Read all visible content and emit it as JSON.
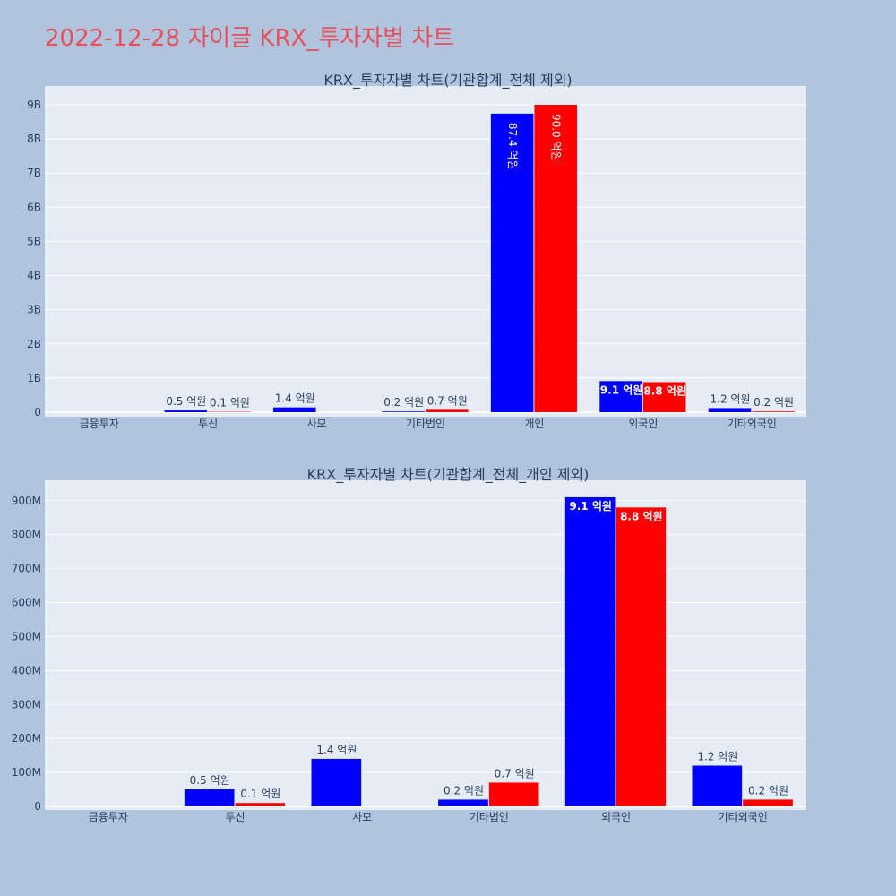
{
  "page_title": "2022-12-28 자이글 KRX_투자자별 차트",
  "colors": {
    "series_a": "#0000ff",
    "series_b": "#ff0000",
    "plot_bg": "#e5ecf6",
    "page_bg": "#b0c4de",
    "title": "#e8505b"
  },
  "chart_data": [
    {
      "type": "bar",
      "title": "KRX_투자자별 차트(기관합계_전체 제외)",
      "categories": [
        "금융투자",
        "투신",
        "사모",
        "기타법인",
        "개인",
        "외국인",
        "기타외국인"
      ],
      "series": [
        {
          "values": [
            0,
            50000000,
            140000000,
            20000000,
            8740000000,
            910000000,
            120000000
          ],
          "labels": [
            "",
            "0.5 억원",
            "1.4 억원",
            "0.2 억원",
            "87.4 억원",
            "9.1 억원",
            "1.2 억원"
          ]
        },
        {
          "values": [
            0,
            10000000,
            0,
            70000000,
            9000000000,
            880000000,
            20000000
          ],
          "labels": [
            "",
            "0.1 억원",
            "",
            "0.7 억원",
            "90.0 억원",
            "8.8 억원",
            "0.2 억원"
          ]
        }
      ],
      "yticks": [
        "0",
        "1B",
        "2B",
        "3B",
        "4B",
        "5B",
        "6B",
        "7B",
        "8B",
        "9B"
      ],
      "ylim": [
        0,
        9550000000
      ],
      "grid": true,
      "legend": "none"
    },
    {
      "type": "bar",
      "title": "KRX_투자자별 차트(기관합계_전체_개인 제외)",
      "categories": [
        "금융투자",
        "투신",
        "사모",
        "기타법인",
        "외국인",
        "기타외국인"
      ],
      "series": [
        {
          "values": [
            0,
            50000000,
            140000000,
            20000000,
            910000000,
            120000000
          ],
          "labels": [
            "",
            "0.5 억원",
            "1.4 억원",
            "0.2 억원",
            "9.1 억원",
            "1.2 억원"
          ]
        },
        {
          "values": [
            0,
            10000000,
            0,
            70000000,
            880000000,
            20000000
          ],
          "labels": [
            "",
            "0.1 억원",
            "",
            "0.7 억원",
            "8.8 억원",
            "0.2 억원"
          ]
        }
      ],
      "yticks": [
        "0",
        "100M",
        "200M",
        "300M",
        "400M",
        "500M",
        "600M",
        "700M",
        "800M",
        "900M"
      ],
      "ylim": [
        0,
        960000000
      ],
      "grid": true,
      "legend": "none"
    }
  ]
}
